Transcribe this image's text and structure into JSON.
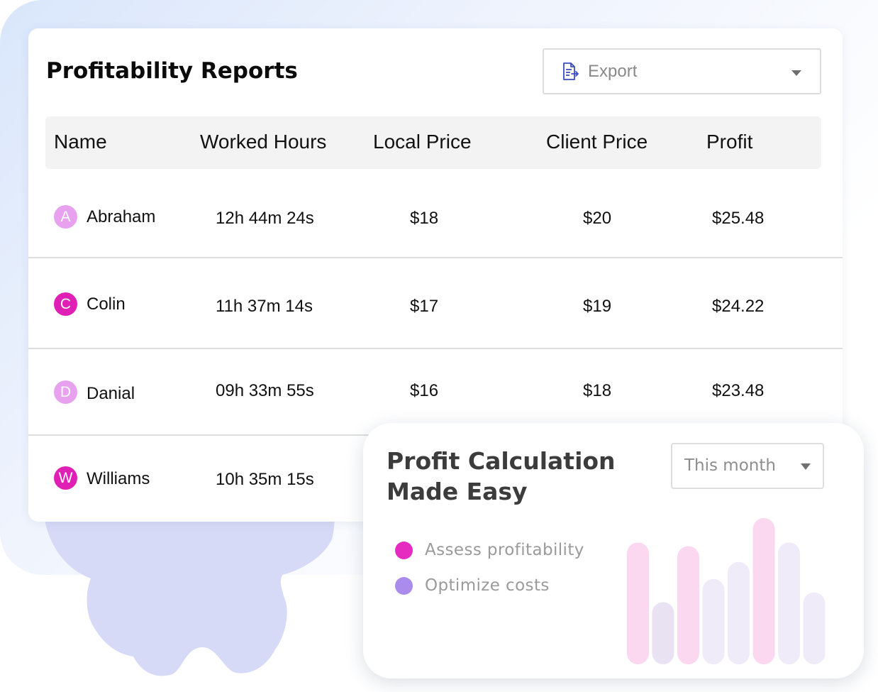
{
  "report": {
    "title": "Profitability Reports",
    "export": {
      "label": "Export",
      "icon": "document-export-icon"
    },
    "columns": [
      "Name",
      "Worked Hours",
      "Local Price",
      "Client Price",
      "Profit"
    ],
    "rows": [
      {
        "initial": "A",
        "name": "Abraham",
        "hours": "12h 44m 24s",
        "local": "$18",
        "client": "$20",
        "profit": "$25.48",
        "avatar_color": "#e7a1ef"
      },
      {
        "initial": "C",
        "name": "Colin",
        "hours": "11h 37m 14s",
        "local": "$17",
        "client": "$19",
        "profit": "$24.22",
        "avatar_color": "#e01fb4"
      },
      {
        "initial": "D",
        "name": "Danial",
        "hours": "09h 33m 55s",
        "local": "$16",
        "client": "$18",
        "profit": "$23.48",
        "avatar_color": "#e7a1ef"
      },
      {
        "initial": "W",
        "name": "Williams",
        "hours": "10h 35m 15s",
        "local": "",
        "client": "",
        "profit": "",
        "avatar_color": "#e01fb4"
      }
    ]
  },
  "promo": {
    "title_line1": "Profit Calculation",
    "title_line2": "Made Easy",
    "period": "This month",
    "legend": [
      {
        "label": "Assess profitability",
        "color": "#e52bc0"
      },
      {
        "label": "Optimize costs",
        "color": "#a98cec"
      }
    ]
  },
  "chart_data": {
    "type": "bar",
    "title": "",
    "xlabel": "",
    "ylabel": "",
    "values": [
      100,
      51,
      97,
      70,
      84,
      120,
      100,
      59
    ],
    "colors": [
      "#fbd8ef",
      "#e8e2f3",
      "#fbd8ef",
      "#efebf8",
      "#efebf8",
      "#fbd8ef",
      "#efebf8",
      "#efebf8"
    ]
  },
  "decor": {
    "gear_color": "#d7daf6",
    "accent": "#3b4cc0"
  }
}
